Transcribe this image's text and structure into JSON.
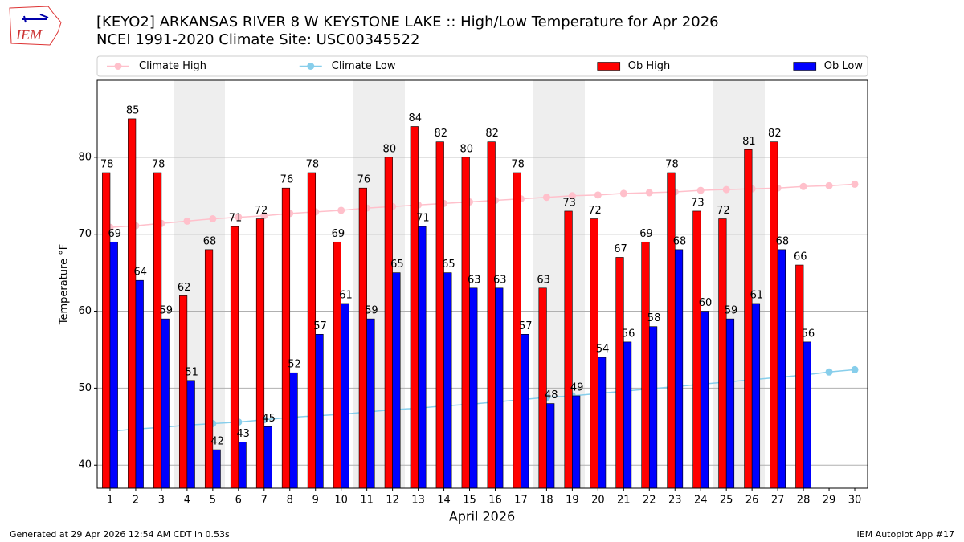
{
  "chart_data": {
    "type": "bar",
    "title": "[KEYO2] ARKANSAS RIVER 8 W KEYSTONE LAKE :: High/Low Temperature for Apr 2026",
    "subtitle": "NCEI 1991-2020 Climate Site: USC00345522",
    "logo": "IEM",
    "x_label": "April 2026",
    "y_label": "Temperature °F",
    "footer_left": "Generated at 29 Apr 2026 12:54 AM CDT in 0.53s",
    "footer_right": "IEM Autoplot App #17",
    "x": [
      1,
      2,
      3,
      4,
      5,
      6,
      7,
      8,
      9,
      10,
      11,
      12,
      13,
      14,
      15,
      16,
      17,
      18,
      19,
      20,
      21,
      22,
      23,
      24,
      25,
      26,
      27,
      28,
      29,
      30
    ],
    "xlim": [
      0.5,
      30.5
    ],
    "ylim": [
      37,
      90
    ],
    "yticks": [
      40,
      50,
      60,
      70,
      80
    ],
    "grid": true,
    "legend": "top",
    "series": [
      {
        "name": "Climate High",
        "type": "line",
        "color": "#ffc0cb",
        "values": [
          70.9,
          71.1,
          71.4,
          71.7,
          72.0,
          72.2,
          72.4,
          72.7,
          72.9,
          73.1,
          73.4,
          73.6,
          73.8,
          74.0,
          74.2,
          74.4,
          74.6,
          74.8,
          75.0,
          75.1,
          75.3,
          75.4,
          75.5,
          75.7,
          75.8,
          75.9,
          76.0,
          76.2,
          76.3,
          76.5
        ]
      },
      {
        "name": "Climate Low",
        "type": "line",
        "color": "#87ceeb",
        "values": [
          44.4,
          44.7,
          44.9,
          45.2,
          45.4,
          45.6,
          45.9,
          46.2,
          46.4,
          46.6,
          46.9,
          47.2,
          47.4,
          47.7,
          47.9,
          48.2,
          48.5,
          48.8,
          49.0,
          49.3,
          49.6,
          49.9,
          50.2,
          50.5,
          50.8,
          51.1,
          51.4,
          51.7,
          52.1,
          52.4
        ]
      },
      {
        "name": "Ob High",
        "type": "bar",
        "color": "#ff0000",
        "values": [
          78,
          85,
          78,
          62,
          68,
          71,
          72,
          76,
          78,
          69,
          76,
          80,
          84,
          82,
          80,
          82,
          78,
          63,
          73,
          72,
          67,
          69,
          78,
          73,
          72,
          81,
          82,
          66,
          null,
          null
        ]
      },
      {
        "name": "Ob Low",
        "type": "bar",
        "color": "#0000ff",
        "values": [
          69,
          64,
          59,
          51,
          42,
          43,
          45,
          52,
          57,
          61,
          59,
          65,
          71,
          65,
          63,
          63,
          57,
          48,
          49,
          54,
          56,
          58,
          68,
          60,
          59,
          61,
          68,
          56,
          null,
          null
        ]
      }
    ]
  }
}
